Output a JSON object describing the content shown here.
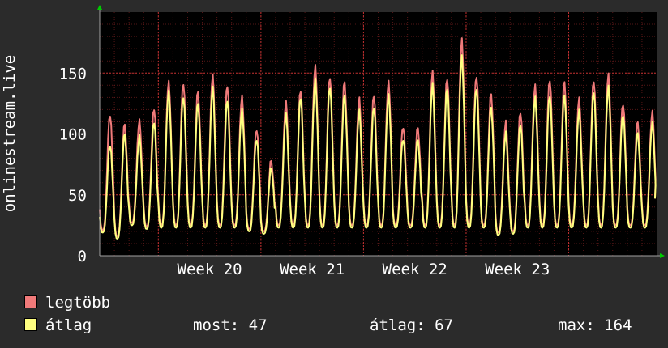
{
  "chart_data": {
    "type": "line",
    "ylabel": "onlinestream.live",
    "ylim": [
      0,
      200
    ],
    "yticks": [
      0,
      50,
      100,
      150
    ],
    "xticks": [
      "Week 20",
      "Week 21",
      "Week 22",
      "Week 23"
    ],
    "grid": true,
    "colors": {
      "background": "#2b2b2b",
      "plot_background": "#000000",
      "grid": "#7a2020",
      "axis": "#a0a0a0",
      "text": "#ffffff",
      "arrow": "#00cc00"
    },
    "series": [
      {
        "name": "legtöbb",
        "color": "#f07a7a",
        "peaks": [
          117,
          108,
          110,
          121,
          143,
          143,
          135,
          147,
          140,
          131,
          105,
          78,
          125,
          136,
          156,
          148,
          143,
          128,
          132,
          143,
          107,
          105,
          150,
          146,
          178,
          149,
          133,
          109,
          118,
          140,
          146,
          143,
          128,
          144,
          149,
          126,
          110,
          117
        ],
        "troughs": [
          21,
          16,
          27,
          24,
          25,
          25,
          25,
          25,
          25,
          25,
          22,
          20,
          25,
          25,
          25,
          25,
          25,
          25,
          25,
          25,
          25,
          25,
          25,
          25,
          25,
          25,
          25,
          19,
          20,
          25,
          25,
          25,
          25,
          25,
          25,
          25,
          25,
          25
        ]
      },
      {
        "name": "átlag",
        "color": "#ffff80",
        "peaks": [
          92,
          100,
          97,
          110,
          135,
          132,
          125,
          137,
          128,
          120,
          97,
          72,
          115,
          130,
          145,
          140,
          132,
          118,
          122,
          132,
          97,
          95,
          140,
          138,
          164,
          139,
          122,
          100,
          108,
          130,
          133,
          132,
          118,
          135,
          139,
          117,
          101,
          108
        ],
        "troughs": [
          19,
          14,
          25,
          22,
          23,
          23,
          23,
          23,
          23,
          23,
          20,
          18,
          23,
          23,
          23,
          23,
          23,
          23,
          23,
          23,
          23,
          23,
          23,
          23,
          23,
          23,
          23,
          17,
          18,
          23,
          23,
          23,
          23,
          23,
          23,
          23,
          23,
          23
        ]
      }
    ]
  },
  "legend": [
    {
      "label": "legtöbb",
      "color": "#f07a7a"
    },
    {
      "label": "átlag",
      "color": "#ffff80"
    }
  ],
  "stats": {
    "most": "most: 47",
    "atlag": "átlag: 67",
    "max": "max: 164"
  }
}
